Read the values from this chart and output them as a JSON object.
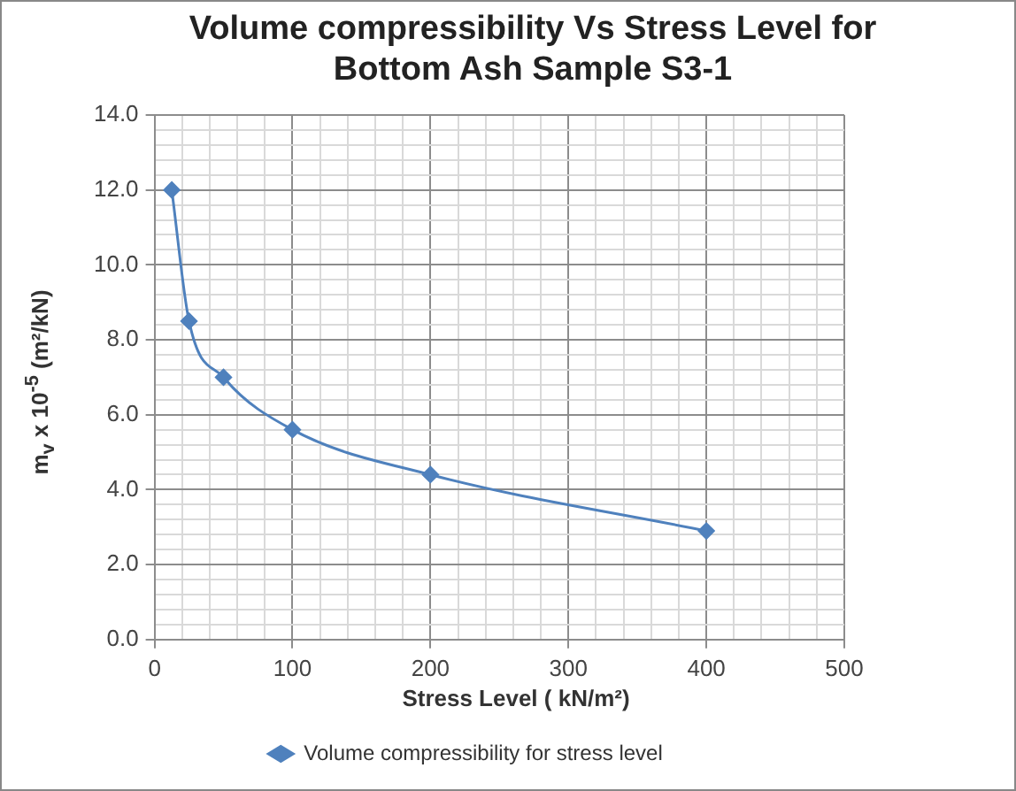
{
  "chart_data": {
    "type": "line",
    "title": "Volume compressibility Vs Stress Level for Bottom Ash Sample S3-1",
    "xlabel": "Stress Level  ( kN/m²)",
    "ylabel": "m$_{v}$  x 10$^{-5}$ (m²/kN)",
    "x": [
      12.5,
      25,
      50,
      100,
      200,
      400
    ],
    "series": [
      {
        "name": "Volume compressibility for stress level",
        "color": "#4f81bd",
        "values": [
          12.0,
          8.5,
          7.0,
          5.6,
          4.4,
          2.9
        ]
      }
    ],
    "xlim": [
      0,
      500
    ],
    "xticks": [
      0,
      {
        "value": 20,
        "label": null
      },
      {
        "value": 40,
        "label": null
      },
      {
        "value": 60,
        "label": null
      },
      {
        "value": 80,
        "label": null
      },
      100,
      {
        "value": 120,
        "label": null
      },
      {
        "value": 140,
        "label": null
      },
      {
        "value": 160,
        "label": null
      },
      {
        "value": 180,
        "label": null
      },
      200,
      {
        "value": 220,
        "label": null
      },
      {
        "value": 240,
        "label": null
      },
      {
        "value": 260,
        "label": null
      },
      {
        "value": 280,
        "label": null
      },
      300,
      {
        "value": 320,
        "label": null
      },
      {
        "value": 340,
        "label": null
      },
      {
        "value": 360,
        "label": null
      },
      {
        "value": 380,
        "label": null
      },
      400,
      {
        "value": 420,
        "label": null
      },
      {
        "value": 440,
        "label": null
      },
      {
        "value": 460,
        "label": null
      },
      {
        "value": 480,
        "label": null
      },
      500
    ],
    "ylim": [
      0,
      14
    ],
    "yticks": [
      {
        "value": 0,
        "label": "0.0"
      },
      {
        "value": 0.4,
        "label": null
      },
      {
        "value": 0.8,
        "label": null
      },
      {
        "value": 1.2,
        "label": null
      },
      {
        "value": 1.6,
        "label": null
      },
      {
        "value": 2,
        "label": "2.0"
      },
      {
        "value": 2.4,
        "label": null
      },
      {
        "value": 2.8,
        "label": null
      },
      {
        "value": 3.2,
        "label": null
      },
      {
        "value": 3.6,
        "label": null
      },
      {
        "value": 4,
        "label": "4.0"
      },
      {
        "value": 4.4,
        "label": null
      },
      {
        "value": 4.8,
        "label": null
      },
      {
        "value": 5.2,
        "label": null
      },
      {
        "value": 5.6,
        "label": null
      },
      {
        "value": 6,
        "label": "6.0"
      },
      {
        "value": 6.4,
        "label": null
      },
      {
        "value": 6.8,
        "label": null
      },
      {
        "value": 7.2,
        "label": null
      },
      {
        "value": 7.6,
        "label": null
      },
      {
        "value": 8,
        "label": "8.0"
      },
      {
        "value": 8.4,
        "label": null
      },
      {
        "value": 8.8,
        "label": null
      },
      {
        "value": 9.2,
        "label": null
      },
      {
        "value": 9.6,
        "label": null
      },
      {
        "value": 10,
        "label": "10.0"
      },
      {
        "value": 10.4,
        "label": null
      },
      {
        "value": 10.8,
        "label": null
      },
      {
        "value": 11.2,
        "label": null
      },
      {
        "value": 11.6,
        "label": null
      },
      {
        "value": 12,
        "label": "12.0"
      },
      {
        "value": 12.4,
        "label": null
      },
      {
        "value": 12.8,
        "label": null
      },
      {
        "value": 13.2,
        "label": null
      },
      {
        "value": 13.6,
        "label": null
      },
      {
        "value": 14,
        "label": "14.0"
      }
    ],
    "grid": true,
    "legend": "bottom",
    "marker": "diamond",
    "line_style": "solid"
  }
}
